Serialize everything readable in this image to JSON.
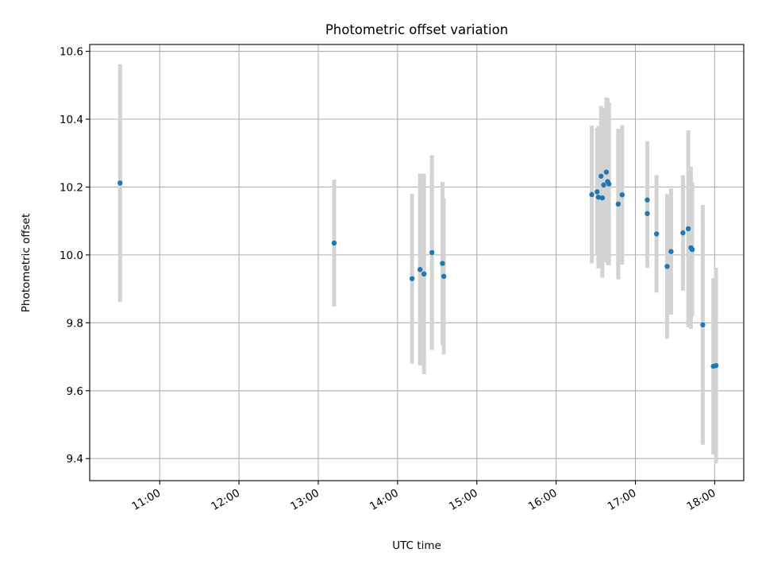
{
  "chart_data": {
    "type": "scatter",
    "title": "Photometric offset variation",
    "xlabel": "UTC time",
    "ylabel": "Photometric offset",
    "x_is_time": true,
    "xlim": [
      "10:07",
      "18:22"
    ],
    "ylim": [
      9.335,
      10.62
    ],
    "grid": true,
    "x_ticks": [
      "11:00",
      "12:00",
      "13:00",
      "14:00",
      "15:00",
      "16:00",
      "17:00",
      "18:00"
    ],
    "y_ticks": [
      "9.4",
      "9.6",
      "9.8",
      "10.0",
      "10.2",
      "10.4",
      "10.6"
    ],
    "colors": {
      "points": "#1f77b4",
      "error_bars": "#d3d3d3",
      "grid": "#b0b0b0"
    },
    "series": [
      {
        "x": [
          "10:30",
          "13:12",
          "14:11",
          "14:17",
          "14:20",
          "14:26",
          "14:34",
          "14:35",
          "16:27",
          "16:31",
          "16:32",
          "16:34",
          "16:35",
          "16:36",
          "16:38",
          "16:39",
          "16:40",
          "16:47",
          "16:50",
          "17:09",
          "17:09",
          "17:16",
          "17:24",
          "17:27",
          "17:36",
          "17:40",
          "17:42",
          "17:43",
          "17:51",
          "17:59",
          "18:01"
        ],
        "y": [
          10.212,
          10.035,
          9.93,
          9.957,
          9.944,
          10.007,
          9.975,
          9.937,
          10.178,
          10.186,
          10.17,
          10.232,
          10.168,
          10.206,
          10.244,
          10.216,
          10.209,
          10.15,
          10.177,
          10.162,
          10.122,
          10.062,
          9.966,
          10.01,
          10.065,
          10.077,
          10.021,
          10.016,
          9.794,
          9.672,
          9.674
        ],
        "error": [
          0.35,
          0.187,
          0.25,
          0.283,
          0.295,
          0.287,
          0.24,
          0.23,
          0.203,
          0.188,
          0.21,
          0.207,
          0.235,
          0.227,
          0.22,
          0.245,
          0.24,
          0.222,
          0.205,
          0.173,
          0.16,
          0.173,
          0.213,
          0.186,
          0.17,
          0.29,
          0.239,
          0.197,
          0.353,
          0.26,
          0.288
        ]
      }
    ]
  }
}
